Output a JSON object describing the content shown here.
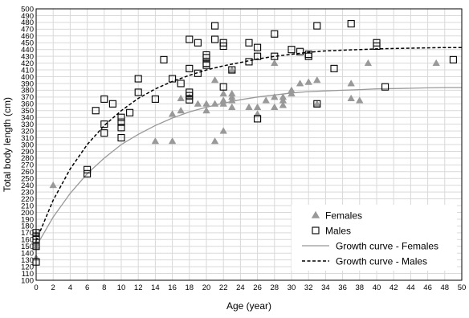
{
  "chart_data": {
    "type": "scatter",
    "xlabel": "Age (year)",
    "ylabel": "Total body length (cm)",
    "xlim": [
      0,
      50
    ],
    "ylim": [
      100,
      500
    ],
    "xticks": [
      0,
      2,
      4,
      6,
      8,
      10,
      12,
      14,
      16,
      18,
      20,
      22,
      24,
      26,
      28,
      30,
      32,
      34,
      36,
      38,
      40,
      42,
      44,
      46,
      48,
      50
    ],
    "yticks": [
      100,
      110,
      120,
      130,
      140,
      150,
      160,
      170,
      180,
      190,
      200,
      210,
      220,
      230,
      240,
      250,
      260,
      270,
      280,
      290,
      300,
      310,
      320,
      330,
      340,
      350,
      360,
      370,
      380,
      390,
      400,
      410,
      420,
      430,
      440,
      450,
      460,
      470,
      480,
      490,
      500
    ],
    "grid": true,
    "legend_position": "bottom-right",
    "series": [
      {
        "name": "Females",
        "kind": "points",
        "marker": "triangle",
        "color": "#999999",
        "points": [
          [
            0,
            168
          ],
          [
            0,
            155
          ],
          [
            0,
            150
          ],
          [
            0,
            133
          ],
          [
            2,
            240
          ],
          [
            14,
            305
          ],
          [
            16,
            305
          ],
          [
            16,
            345
          ],
          [
            17,
            368
          ],
          [
            17,
            350
          ],
          [
            18,
            370
          ],
          [
            19,
            360
          ],
          [
            20,
            360
          ],
          [
            20,
            350
          ],
          [
            21,
            305
          ],
          [
            21,
            360
          ],
          [
            21,
            395
          ],
          [
            22,
            375
          ],
          [
            22,
            365
          ],
          [
            22,
            360
          ],
          [
            22,
            320
          ],
          [
            23,
            375
          ],
          [
            23,
            370
          ],
          [
            23,
            365
          ],
          [
            23,
            355
          ],
          [
            23,
            410
          ],
          [
            25,
            355
          ],
          [
            26,
            355
          ],
          [
            26,
            345
          ],
          [
            27,
            365
          ],
          [
            28,
            420
          ],
          [
            28,
            370
          ],
          [
            28,
            355
          ],
          [
            29,
            370
          ],
          [
            29,
            365
          ],
          [
            29,
            358
          ],
          [
            30,
            380
          ],
          [
            30,
            375
          ],
          [
            31,
            390
          ],
          [
            32,
            392
          ],
          [
            33,
            395
          ],
          [
            33,
            360
          ],
          [
            37,
            390
          ],
          [
            37,
            368
          ],
          [
            38,
            365
          ],
          [
            39,
            420
          ],
          [
            47,
            420
          ]
        ]
      },
      {
        "name": "Males",
        "kind": "points",
        "marker": "square",
        "color": "#000000",
        "points": [
          [
            0,
            170
          ],
          [
            0,
            165
          ],
          [
            0,
            160
          ],
          [
            0,
            150
          ],
          [
            0,
            127
          ],
          [
            6,
            263
          ],
          [
            6,
            257
          ],
          [
            7,
            350
          ],
          [
            8,
            367
          ],
          [
            8,
            330
          ],
          [
            8,
            317
          ],
          [
            9,
            360
          ],
          [
            10,
            340
          ],
          [
            10,
            333
          ],
          [
            10,
            325
          ],
          [
            10,
            310
          ],
          [
            11,
            347
          ],
          [
            12,
            397
          ],
          [
            12,
            377
          ],
          [
            14,
            367
          ],
          [
            15,
            425
          ],
          [
            16,
            397
          ],
          [
            17,
            390
          ],
          [
            18,
            455
          ],
          [
            18,
            412
          ],
          [
            18,
            377
          ],
          [
            18,
            372
          ],
          [
            18,
            366
          ],
          [
            19,
            450
          ],
          [
            19,
            405
          ],
          [
            20,
            432
          ],
          [
            20,
            428
          ],
          [
            20,
            420
          ],
          [
            20,
            417
          ],
          [
            21,
            475
          ],
          [
            21,
            455
          ],
          [
            22,
            450
          ],
          [
            22,
            445
          ],
          [
            22,
            385
          ],
          [
            23,
            410
          ],
          [
            25,
            450
          ],
          [
            25,
            422
          ],
          [
            26,
            443
          ],
          [
            26,
            430
          ],
          [
            26,
            338
          ],
          [
            28,
            463
          ],
          [
            28,
            430
          ],
          [
            30,
            440
          ],
          [
            31,
            437
          ],
          [
            32,
            433
          ],
          [
            32,
            430
          ],
          [
            33,
            475
          ],
          [
            33,
            360
          ],
          [
            35,
            412
          ],
          [
            37,
            478
          ],
          [
            40,
            450
          ],
          [
            40,
            445
          ],
          [
            41,
            385
          ],
          [
            49,
            425
          ]
        ]
      },
      {
        "name": "Growth curve - Females",
        "kind": "curve",
        "style": "solid",
        "color": "#999999",
        "x": [
          0,
          2,
          4,
          6,
          8,
          10,
          12,
          14,
          16,
          18,
          20,
          22,
          24,
          26,
          28,
          30,
          32,
          34,
          36,
          38,
          40,
          42,
          44,
          46,
          48,
          50
        ],
        "y": [
          150,
          193,
          228,
          257,
          280,
          300,
          315,
          328,
          339,
          348,
          355,
          361,
          366,
          370,
          373,
          376,
          378,
          379,
          380,
          381,
          382,
          382.5,
          383,
          383.5,
          384,
          384
        ]
      },
      {
        "name": "Growth curve - Males",
        "kind": "curve",
        "style": "dashed",
        "color": "#000000",
        "x": [
          0,
          2,
          4,
          6,
          8,
          10,
          12,
          14,
          16,
          18,
          20,
          22,
          24,
          26,
          28,
          30,
          32,
          34,
          36,
          38,
          40,
          42,
          44,
          46,
          48,
          50
        ],
        "y": [
          158,
          218,
          264,
          300,
          328,
          350,
          368,
          382,
          393,
          402,
          410,
          416,
          421,
          426,
          430,
          433,
          436,
          438,
          439,
          440,
          441,
          441.5,
          442,
          442.5,
          443,
          443
        ]
      }
    ]
  }
}
